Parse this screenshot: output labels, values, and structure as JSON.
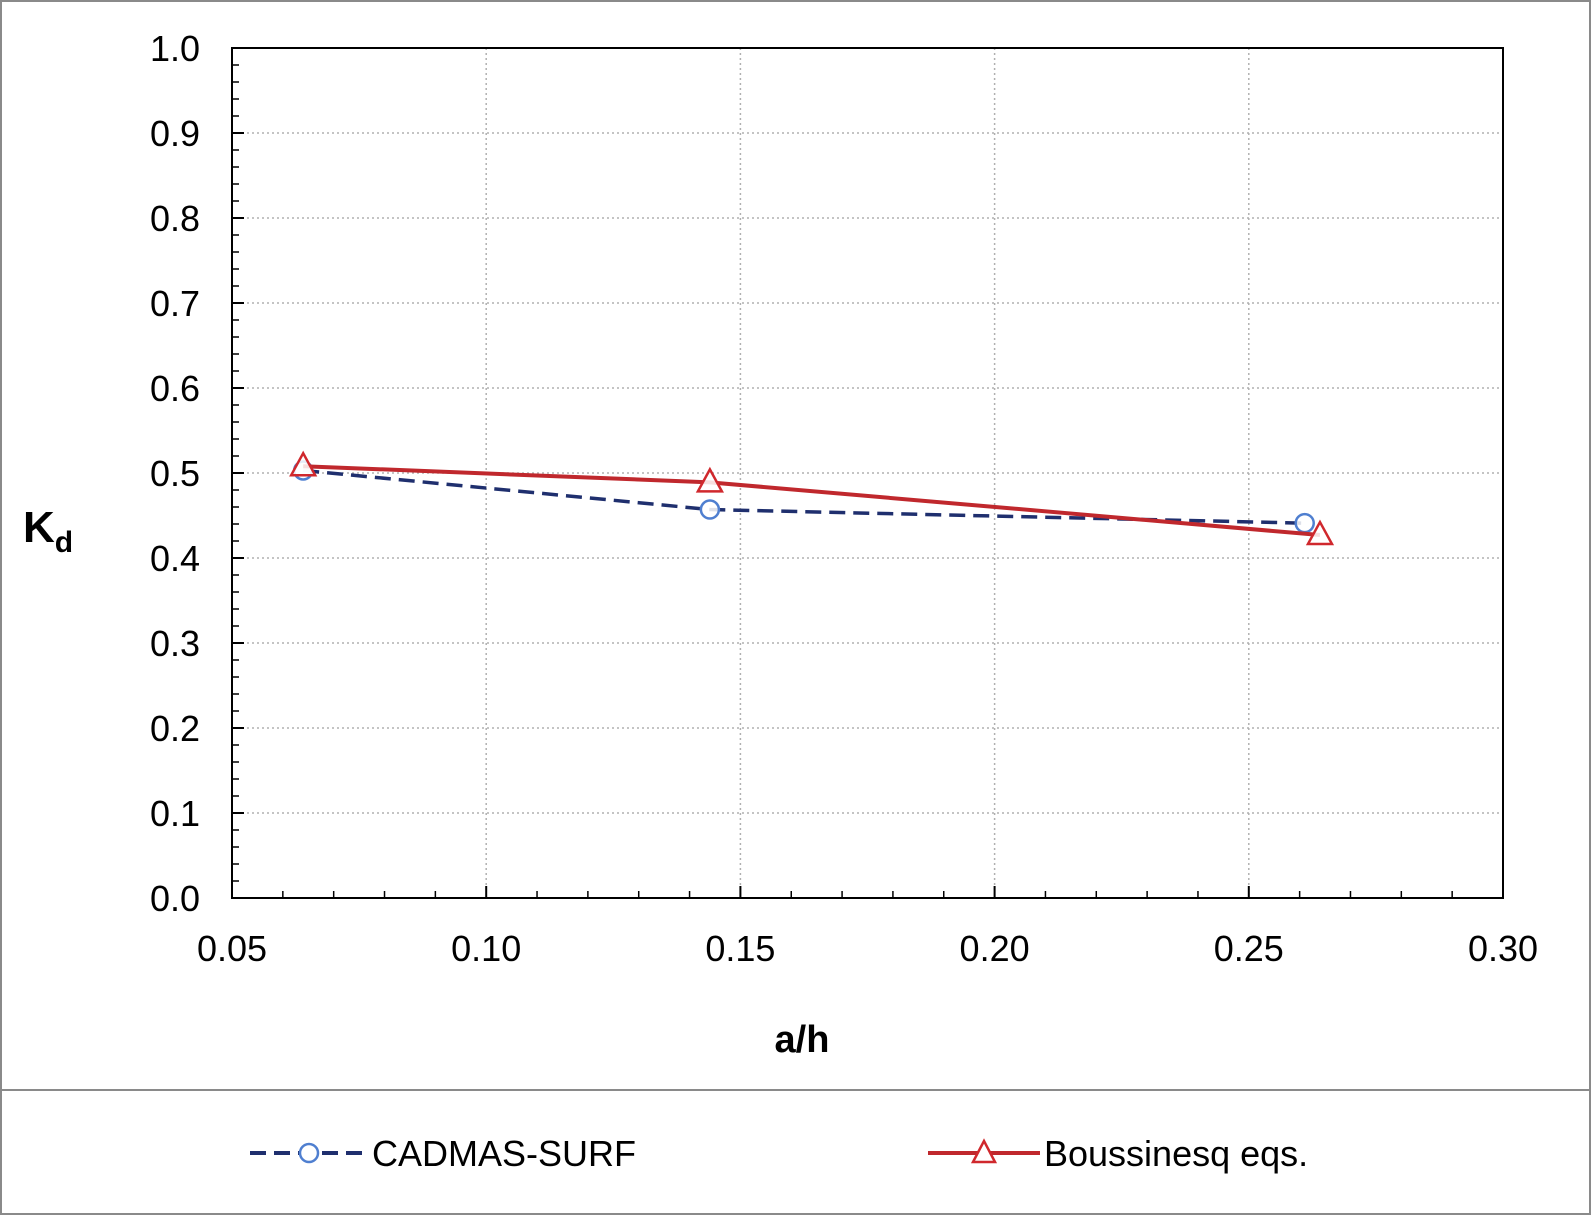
{
  "chart_data": {
    "type": "line",
    "xlabel": "a/h",
    "ylabel_main": "K",
    "ylabel_sub": "d",
    "xlim": [
      0.05,
      0.3
    ],
    "ylim": [
      0.0,
      1.0
    ],
    "xticks": [
      "0.05",
      "0.10",
      "0.15",
      "0.20",
      "0.25",
      "0.30"
    ],
    "yticks": [
      "0.0",
      "0.1",
      "0.2",
      "0.3",
      "0.4",
      "0.5",
      "0.6",
      "0.7",
      "0.8",
      "0.9",
      "1.0"
    ],
    "grid": true,
    "legend_position": "bottom",
    "series": [
      {
        "name": "CADMAS-SURF",
        "color": "#1f2f6e",
        "line_style": "dashed",
        "marker": "circle",
        "marker_color": "#4f7fd0",
        "x": [
          0.064,
          0.144,
          0.261
        ],
        "y": [
          0.503,
          0.457,
          0.441
        ]
      },
      {
        "name": "Boussinesq eqs.",
        "color": "#c0282d",
        "line_style": "solid",
        "marker": "triangle",
        "marker_color": "#d0282d",
        "x": [
          0.064,
          0.144,
          0.264
        ],
        "y": [
          0.508,
          0.489,
          0.427
        ]
      }
    ]
  }
}
